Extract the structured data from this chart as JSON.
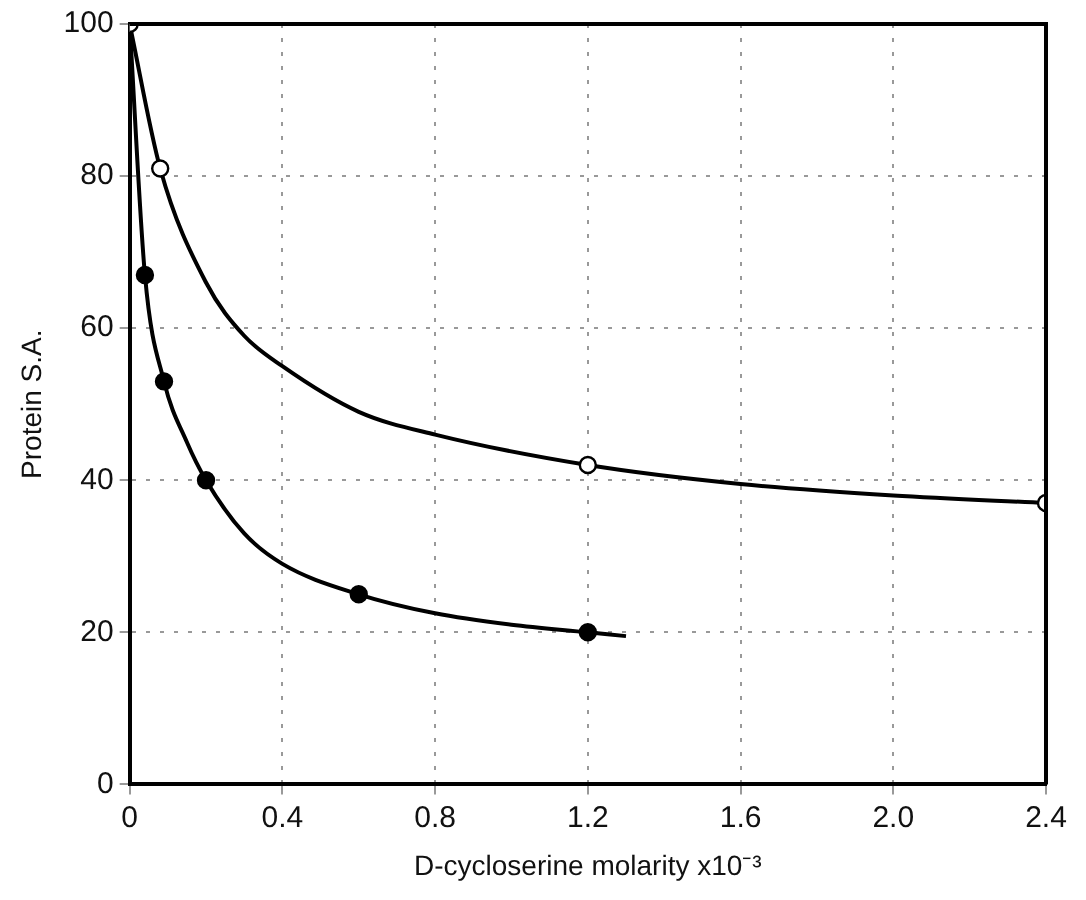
{
  "chart_data": {
    "type": "scatter",
    "xlabel": "D-cycloserine molarity x10⁻³",
    "ylabel": "Protein S.A.",
    "xlim": [
      0,
      2.4
    ],
    "ylim": [
      0,
      100
    ],
    "xticks": [
      0,
      0.4,
      0.8,
      1.2,
      1.6,
      {
        "value": 2.0,
        "label": "2.0"
      },
      2.4
    ],
    "yticks": [
      0,
      20,
      40,
      60,
      80,
      100
    ],
    "grid": true,
    "legend": false,
    "marker": "circle",
    "series": [
      {
        "type": "scatter",
        "color": "#000000",
        "x": [
          0,
          0.08,
          1.2,
          2.4
        ],
        "values": [
          100,
          81,
          42,
          37
        ]
      },
      {
        "type": "scatter",
        "color": "#000000",
        "x": [
          0.04,
          0.09,
          0.2,
          0.6,
          1.2
        ],
        "values": [
          67,
          53,
          40,
          25,
          20
        ]
      },
      {
        "type": "line",
        "color": "#000000",
        "marker": "none",
        "x": [
          0,
          0.08,
          0.2,
          0.3,
          0.4,
          0.6,
          0.8,
          1.2,
          1.6,
          2.0,
          2.4
        ],
        "values": [
          100,
          81,
          66,
          59,
          55,
          49,
          46,
          42,
          39.5,
          38,
          37
        ]
      },
      {
        "type": "line",
        "color": "#000000",
        "marker": "none",
        "x": [
          0,
          0.04,
          0.09,
          0.15,
          0.2,
          0.3,
          0.4,
          0.6,
          0.8,
          1.0,
          1.2,
          1.3
        ],
        "values": [
          100,
          67,
          53,
          45,
          40,
          33,
          29,
          25,
          22.5,
          21,
          20,
          19.5
        ]
      }
    ]
  }
}
